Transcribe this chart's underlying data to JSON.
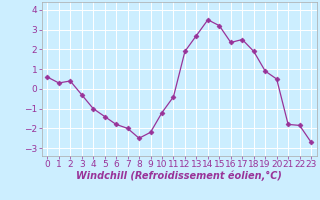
{
  "x": [
    0,
    1,
    2,
    3,
    4,
    5,
    6,
    7,
    8,
    9,
    10,
    11,
    12,
    13,
    14,
    15,
    16,
    17,
    18,
    19,
    20,
    21,
    22,
    23
  ],
  "y": [
    0.6,
    0.3,
    0.4,
    -0.3,
    -1.0,
    -1.4,
    -1.8,
    -2.0,
    -2.5,
    -2.2,
    -1.2,
    -0.4,
    1.9,
    2.7,
    3.5,
    3.2,
    2.35,
    2.5,
    1.9,
    0.9,
    0.5,
    -1.8,
    -1.85,
    -2.7
  ],
  "line_color": "#993399",
  "marker": "D",
  "marker_size": 2.5,
  "bg_color": "#cceeff",
  "grid_color": "#ffffff",
  "xlabel": "Windchill (Refroidissement éolien,°C)",
  "xlabel_fontsize": 7,
  "tick_fontsize": 6.5,
  "xlim": [
    -0.5,
    23.5
  ],
  "ylim": [
    -3.4,
    4.4
  ],
  "yticks": [
    -3,
    -2,
    -1,
    0,
    1,
    2,
    3,
    4
  ],
  "xticks": [
    0,
    1,
    2,
    3,
    4,
    5,
    6,
    7,
    8,
    9,
    10,
    11,
    12,
    13,
    14,
    15,
    16,
    17,
    18,
    19,
    20,
    21,
    22,
    23
  ]
}
